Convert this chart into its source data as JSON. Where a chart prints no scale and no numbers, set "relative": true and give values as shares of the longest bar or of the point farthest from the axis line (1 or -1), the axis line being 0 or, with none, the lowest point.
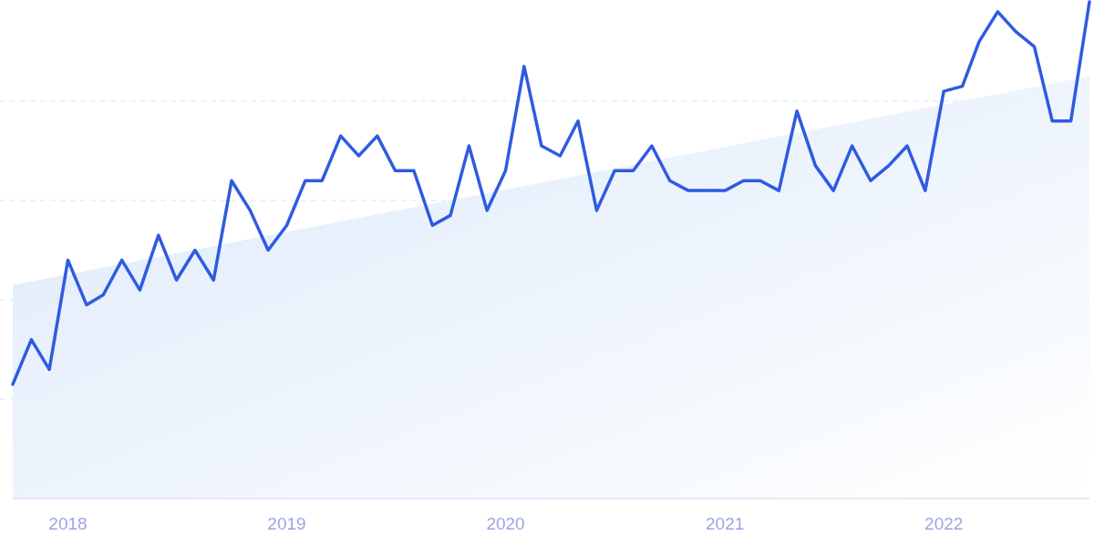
{
  "chart_data": {
    "type": "line",
    "relative": true,
    "grid": true,
    "x": [
      "2017-10",
      "2017-11",
      "2017-12",
      "2018-01",
      "2018-02",
      "2018-03",
      "2018-04",
      "2018-05",
      "2018-06",
      "2018-07",
      "2018-08",
      "2018-09",
      "2018-10",
      "2018-11",
      "2018-12",
      "2019-01",
      "2019-02",
      "2019-03",
      "2019-04",
      "2019-05",
      "2019-06",
      "2019-07",
      "2019-08",
      "2019-09",
      "2019-10",
      "2019-11",
      "2019-12",
      "2020-01",
      "2020-02",
      "2020-03",
      "2020-04",
      "2020-05",
      "2020-06",
      "2020-07",
      "2020-08",
      "2020-09",
      "2020-10",
      "2020-11",
      "2020-12",
      "2021-01",
      "2021-02",
      "2021-03",
      "2021-04",
      "2021-05",
      "2021-06",
      "2021-07",
      "2021-08",
      "2021-09",
      "2021-10",
      "2021-11",
      "2021-12",
      "2022-01",
      "2022-02",
      "2022-03",
      "2022-04",
      "2022-05",
      "2022-06",
      "2022-07",
      "2022-08",
      "2022-09"
    ],
    "xlim": [
      "2017-10",
      "2022-09"
    ],
    "xticks": [
      {
        "value": "2018-01",
        "label": "2018"
      },
      {
        "value": "2019-01",
        "label": "2019"
      },
      {
        "value": "2020-01",
        "label": "2020"
      },
      {
        "value": "2021-01",
        "label": "2021"
      },
      {
        "value": "2022-01",
        "label": "2022"
      }
    ],
    "series": [
      {
        "type": "area",
        "color": "#dce9fa",
        "x": [
          "2017-10",
          "2022-09"
        ],
        "values": [
          0.43,
          0.85
        ]
      },
      {
        "color": "#2f5be0",
        "values": [
          0.23,
          0.32,
          0.26,
          0.48,
          0.39,
          0.41,
          0.48,
          0.42,
          0.53,
          0.44,
          0.5,
          0.44,
          0.64,
          0.58,
          0.5,
          0.55,
          0.64,
          0.64,
          0.73,
          0.69,
          0.73,
          0.66,
          0.66,
          0.55,
          0.57,
          0.71,
          0.58,
          0.66,
          0.87,
          0.71,
          0.69,
          0.76,
          0.58,
          0.66,
          0.66,
          0.71,
          0.64,
          0.62,
          0.62,
          0.62,
          0.64,
          0.64,
          0.62,
          0.78,
          0.67,
          0.62,
          0.71,
          0.64,
          0.67,
          0.71,
          0.62,
          0.82,
          0.83,
          0.92,
          0.98,
          0.94,
          0.91,
          0.76,
          0.76,
          1
        ]
      }
    ]
  }
}
